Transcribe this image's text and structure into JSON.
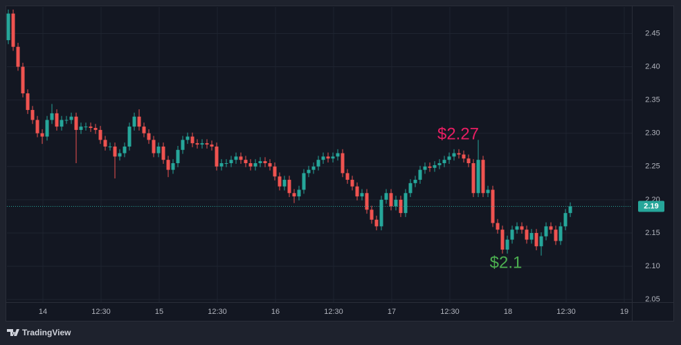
{
  "chart_data": {
    "type": "candlestick",
    "up_color": "#26a69a",
    "down_color": "#ef5350",
    "grid": true,
    "ylim": [
      2.046,
      2.49
    ],
    "yticks": [
      2.05,
      {
        "value": 2.1,
        "label": "2.10"
      },
      2.15,
      {
        "value": 2.2,
        "label": "2.20"
      },
      2.25,
      {
        "value": 2.3,
        "label": "2.30"
      },
      2.35,
      {
        "value": 2.4,
        "label": "2.40"
      },
      2.45
    ],
    "xlim": [
      -0.29,
      128.71
    ],
    "xticks": [
      {
        "value": 7.14,
        "label": "14"
      },
      {
        "value": 19.14,
        "label": "12:30"
      },
      {
        "value": 31.14,
        "label": "15"
      },
      {
        "value": 43.14,
        "label": "12:30"
      },
      {
        "value": 55.14,
        "label": "16"
      },
      {
        "value": 67.14,
        "label": "12:30"
      },
      {
        "value": 79.14,
        "label": "17"
      },
      {
        "value": 91.14,
        "label": "12:30"
      },
      {
        "value": 103.14,
        "label": "18"
      },
      {
        "value": 115.14,
        "label": "12:30"
      },
      {
        "value": 127.14,
        "label": "19"
      }
    ],
    "last_price": 2.19,
    "annotations": [
      {
        "text": "$2.27",
        "color": "#e91e63"
      },
      {
        "text": "$2.1",
        "color": "#4caf50"
      }
    ],
    "watermark": "TradingView",
    "open": [
      2.44,
      2.48,
      2.43,
      2.4,
      2.36,
      2.335,
      2.32,
      2.3,
      2.295,
      2.32,
      2.33,
      2.31,
      2.32,
      2.32,
      2.325,
      2.305,
      2.31,
      2.31,
      2.308,
      2.305,
      2.29,
      2.28,
      2.28,
      2.265,
      2.27,
      2.28,
      2.31,
      2.325,
      2.31,
      2.3,
      2.29,
      2.27,
      2.28,
      2.26,
      2.245,
      2.255,
      2.275,
      2.29,
      2.295,
      2.285,
      2.283,
      2.285,
      2.283,
      2.28,
      2.25,
      2.255,
      2.255,
      2.26,
      2.265,
      2.26,
      2.255,
      2.25,
      2.255,
      2.258,
      2.255,
      2.25,
      2.235,
      2.22,
      2.23,
      2.21,
      2.205,
      2.215,
      2.24,
      2.245,
      2.25,
      2.26,
      2.265,
      2.262,
      2.265,
      2.27,
      2.24,
      2.23,
      2.22,
      2.205,
      2.21,
      2.185,
      2.17,
      2.16,
      2.2,
      2.21,
      2.19,
      2.2,
      2.18,
      2.21,
      2.225,
      2.23,
      2.245,
      2.25,
      2.248,
      2.252,
      2.255,
      2.26,
      2.265,
      2.27,
      2.268,
      2.262,
      2.255,
      2.21,
      2.26,
      2.21,
      2.215,
      2.165,
      2.155,
      2.125,
      2.14,
      2.155,
      2.16,
      2.155,
      2.14,
      2.15,
      2.13,
      2.145,
      2.16,
      2.155,
      2.138,
      2.16,
      2.18
    ],
    "high": [
      2.486,
      2.486,
      2.436,
      2.406,
      2.366,
      2.341,
      2.326,
      2.306,
      2.326,
      2.344,
      2.336,
      2.326,
      2.326,
      2.331,
      2.331,
      2.316,
      2.316,
      2.316,
      2.314,
      2.311,
      2.296,
      2.286,
      2.286,
      2.276,
      2.286,
      2.316,
      2.331,
      2.336,
      2.316,
      2.306,
      2.296,
      2.286,
      2.286,
      2.266,
      2.261,
      2.281,
      2.296,
      2.301,
      2.301,
      2.291,
      2.291,
      2.291,
      2.289,
      2.286,
      2.261,
      2.261,
      2.266,
      2.271,
      2.271,
      2.266,
      2.261,
      2.261,
      2.264,
      2.264,
      2.261,
      2.256,
      2.241,
      2.236,
      2.236,
      2.216,
      2.221,
      2.246,
      2.251,
      2.256,
      2.266,
      2.271,
      2.271,
      2.271,
      2.276,
      2.276,
      2.246,
      2.236,
      2.226,
      2.216,
      2.216,
      2.191,
      2.176,
      2.206,
      2.216,
      2.216,
      2.206,
      2.206,
      2.216,
      2.231,
      2.236,
      2.251,
      2.256,
      2.256,
      2.258,
      2.261,
      2.266,
      2.271,
      2.276,
      2.276,
      2.274,
      2.268,
      2.261,
      2.29,
      2.266,
      2.221,
      2.221,
      2.171,
      2.161,
      2.146,
      2.161,
      2.166,
      2.166,
      2.161,
      2.156,
      2.156,
      2.151,
      2.166,
      2.166,
      2.161,
      2.166,
      2.186,
      2.196
    ],
    "low": [
      2.434,
      2.424,
      2.394,
      2.354,
      2.329,
      2.314,
      2.294,
      2.284,
      2.289,
      2.314,
      2.304,
      2.304,
      2.314,
      2.314,
      2.255,
      2.299,
      2.304,
      2.302,
      2.299,
      2.284,
      2.274,
      2.274,
      2.232,
      2.259,
      2.264,
      2.274,
      2.304,
      2.304,
      2.294,
      2.284,
      2.264,
      2.264,
      2.254,
      2.234,
      2.239,
      2.249,
      2.269,
      2.284,
      2.279,
      2.277,
      2.277,
      2.277,
      2.274,
      2.244,
      2.244,
      2.249,
      2.249,
      2.254,
      2.254,
      2.249,
      2.244,
      2.244,
      2.249,
      2.249,
      2.244,
      2.229,
      2.214,
      2.214,
      2.204,
      2.195,
      2.199,
      2.209,
      2.234,
      2.239,
      2.244,
      2.254,
      2.256,
      2.256,
      2.259,
      2.234,
      2.224,
      2.214,
      2.199,
      2.199,
      2.179,
      2.164,
      2.154,
      2.154,
      2.194,
      2.184,
      2.184,
      2.174,
      2.174,
      2.204,
      2.219,
      2.224,
      2.239,
      2.242,
      2.242,
      2.246,
      2.249,
      2.254,
      2.259,
      2.262,
      2.256,
      2.249,
      2.204,
      2.204,
      2.204,
      2.204,
      2.159,
      2.149,
      2.119,
      2.119,
      2.134,
      2.149,
      2.149,
      2.134,
      2.134,
      2.124,
      2.116,
      2.139,
      2.149,
      2.132,
      2.132,
      2.154,
      2.174
    ],
    "close": [
      2.48,
      2.43,
      2.4,
      2.36,
      2.335,
      2.32,
      2.3,
      2.295,
      2.32,
      2.33,
      2.31,
      2.32,
      2.32,
      2.325,
      2.305,
      2.31,
      2.31,
      2.308,
      2.305,
      2.29,
      2.28,
      2.28,
      2.265,
      2.27,
      2.28,
      2.31,
      2.325,
      2.31,
      2.3,
      2.29,
      2.27,
      2.28,
      2.26,
      2.245,
      2.255,
      2.275,
      2.29,
      2.295,
      2.285,
      2.283,
      2.285,
      2.283,
      2.28,
      2.25,
      2.255,
      2.255,
      2.26,
      2.265,
      2.26,
      2.255,
      2.25,
      2.255,
      2.258,
      2.255,
      2.25,
      2.235,
      2.22,
      2.23,
      2.21,
      2.205,
      2.215,
      2.24,
      2.245,
      2.25,
      2.26,
      2.265,
      2.262,
      2.265,
      2.27,
      2.24,
      2.23,
      2.22,
      2.205,
      2.21,
      2.185,
      2.17,
      2.16,
      2.2,
      2.21,
      2.19,
      2.2,
      2.18,
      2.21,
      2.225,
      2.23,
      2.245,
      2.25,
      2.248,
      2.252,
      2.255,
      2.26,
      2.265,
      2.27,
      2.268,
      2.262,
      2.255,
      2.21,
      2.26,
      2.21,
      2.215,
      2.165,
      2.155,
      2.125,
      2.14,
      2.155,
      2.16,
      2.155,
      2.14,
      2.15,
      2.13,
      2.145,
      2.16,
      2.155,
      2.138,
      2.16,
      2.18,
      2.19
    ]
  }
}
